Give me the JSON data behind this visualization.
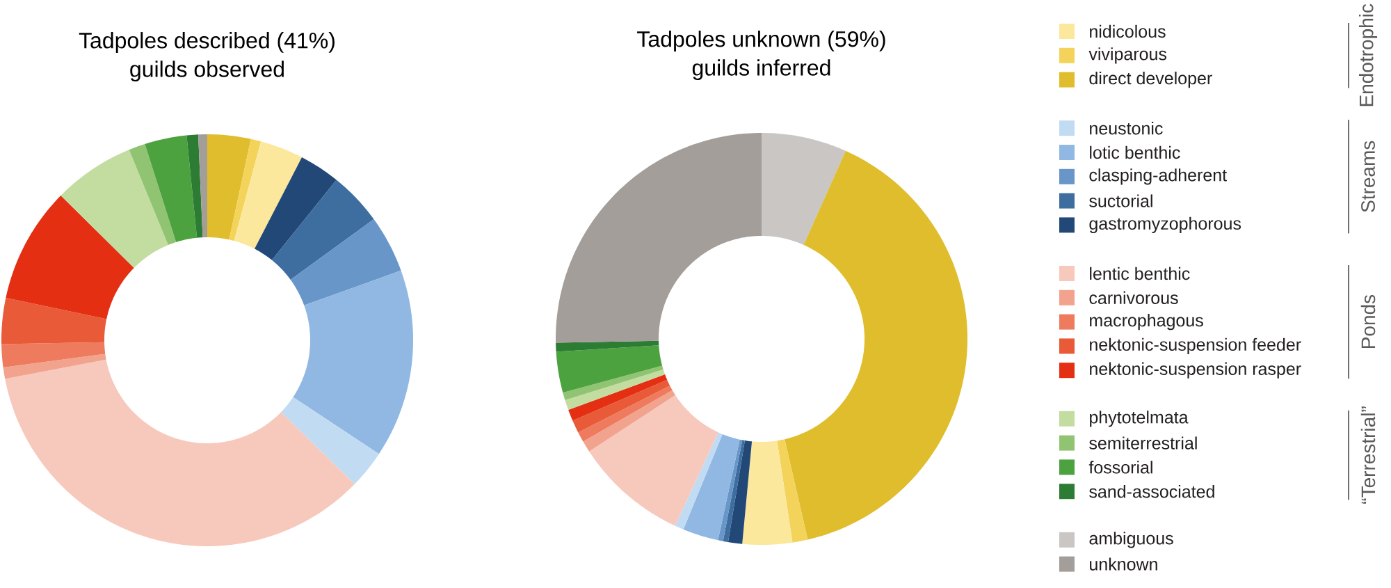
{
  "chart_data": [
    {
      "type": "donut",
      "title": "Tadpoles described (41%)",
      "subtitle": "guilds observed",
      "categories": [
        null,
        null,
        null,
        null,
        null,
        null,
        null,
        null,
        null,
        null,
        null,
        null,
        null,
        null,
        null,
        null,
        null,
        null
      ],
      "values": [
        3.4,
        0.8,
        3.4,
        3.2,
        4.2,
        4.5,
        14.8,
        3.0,
        34.7,
        0.9,
        1.8,
        3.6,
        9.1,
        6.4,
        1.3,
        3.3,
        0.9,
        0.7
      ],
      "colors": [
        "#dfbd2c",
        "#f3d35a",
        "#fbe89d",
        "#224878",
        "#3e6da0",
        "#6896c8",
        "#90b8e2",
        "#c1dbf3",
        "#f7c9bd",
        "#f2a38e",
        "#ee7b5e",
        "#e95a38",
        "#e42f12",
        "#c3dca0",
        "#91c472",
        "#4ca23e",
        "#2d7c34",
        "#a39e99"
      ]
    },
    {
      "type": "donut",
      "title": "Tadpoles unknown (59%)",
      "subtitle": "guilds inferred",
      "categories": [
        null,
        null,
        null,
        null,
        null,
        null,
        null,
        null,
        null,
        null,
        null,
        null,
        null,
        null,
        null,
        null,
        null,
        null,
        null
      ],
      "values": [
        6.7,
        39.7,
        1.2,
        3.9,
        1.1,
        0.4,
        0.4,
        2.8,
        0.7,
        8.9,
        0.9,
        0.8,
        1.0,
        0.9,
        0.8,
        0.6,
        3.2,
        0.7,
        25.3
      ],
      "colors": [
        "#cac6c4",
        "#dfbd2c",
        "#f3d35a",
        "#fbe89d",
        "#224878",
        "#3e6da0",
        "#6896c8",
        "#90b8e2",
        "#c1dbf3",
        "#f7c9bd",
        "#f2a38e",
        "#ee7b5e",
        "#e95a38",
        "#e42f12",
        "#c3dca0",
        "#91c472",
        "#4ca23e",
        "#2d7c34",
        "#a39e99"
      ]
    },
    {
      "type": "other",
      "categories": [
        "nidicolous",
        "viviparous",
        "direct developer",
        null,
        "neustonic",
        "lotic benthic",
        "clasping-adherent",
        "suctorial",
        "gastromyzophorous",
        null,
        "lentic benthic",
        "carnivorous",
        "macrophagous",
        "nektonic-suspension feeder",
        "nektonic-suspension rasper",
        null,
        "phytotelmata",
        "semiterrestrial",
        "fossorial",
        "sand-associated",
        null,
        "ambiguous",
        "unknown"
      ],
      "colors": [
        "#fbe89d",
        "#f3d35a",
        "#dfbd2c",
        null,
        "#c1dbf3",
        "#90b8e2",
        "#6896c8",
        "#3e6da0",
        "#224878",
        null,
        "#f7c9bd",
        "#f2a38e",
        "#ee7b5e",
        "#e95a38",
        "#e42f12",
        null,
        "#c3dca0",
        "#91c472",
        "#4ca23e",
        "#2d7c34",
        null,
        "#cac6c4",
        "#a39e99"
      ],
      "annotations": [
        "Endotrophic",
        "Streams",
        "Ponds",
        "“Terrestrial”"
      ]
    }
  ]
}
